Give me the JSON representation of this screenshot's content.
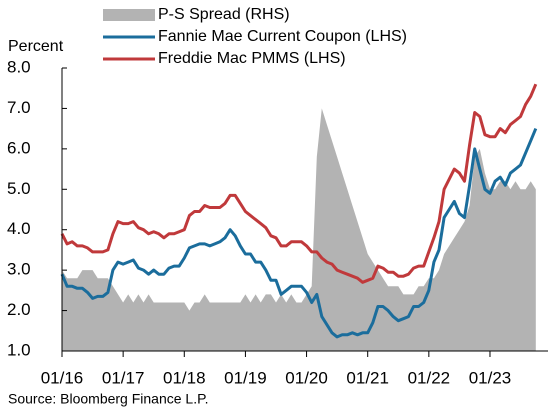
{
  "chart_data": {
    "type": "line",
    "y_label": "Percent",
    "source": "Source: Bloomberg Finance L.P.",
    "x": [
      "01/16",
      "02/16",
      "03/16",
      "04/16",
      "05/16",
      "06/16",
      "07/16",
      "08/16",
      "09/16",
      "10/16",
      "11/16",
      "12/16",
      "01/17",
      "02/17",
      "03/17",
      "04/17",
      "05/17",
      "06/17",
      "07/17",
      "08/17",
      "09/17",
      "10/17",
      "11/17",
      "12/17",
      "01/18",
      "02/18",
      "03/18",
      "04/18",
      "05/18",
      "06/18",
      "07/18",
      "08/18",
      "09/18",
      "10/18",
      "11/18",
      "12/18",
      "01/19",
      "02/19",
      "03/19",
      "04/19",
      "05/19",
      "06/19",
      "07/19",
      "08/19",
      "09/19",
      "10/19",
      "11/19",
      "12/19",
      "01/20",
      "02/20",
      "03/20",
      "04/20",
      "05/20",
      "06/20",
      "07/20",
      "08/20",
      "09/20",
      "10/20",
      "11/20",
      "12/20",
      "01/21",
      "02/21",
      "03/21",
      "04/21",
      "05/21",
      "06/21",
      "07/21",
      "08/21",
      "09/21",
      "10/21",
      "11/21",
      "12/21",
      "01/22",
      "02/22",
      "03/22",
      "04/22",
      "05/22",
      "06/22",
      "07/22",
      "08/22",
      "09/22",
      "10/22",
      "11/22",
      "12/22",
      "01/23",
      "02/23",
      "03/23",
      "04/23",
      "05/23",
      "06/23",
      "07/23",
      "08/23",
      "09/23",
      "10/23"
    ],
    "series": [
      {
        "name": "P-S Spread (RHS)",
        "color": "#b3b3b3",
        "axis": "y2",
        "kind": "area",
        "values": [
          0.5,
          0.45,
          0.45,
          0.45,
          0.5,
          0.5,
          0.5,
          0.45,
          0.45,
          0.45,
          0.4,
          0.35,
          0.3,
          0.35,
          0.3,
          0.35,
          0.3,
          0.35,
          0.3,
          0.3,
          0.3,
          0.3,
          0.3,
          0.3,
          0.3,
          0.25,
          0.3,
          0.3,
          0.35,
          0.3,
          0.3,
          0.3,
          0.3,
          0.3,
          0.3,
          0.3,
          0.35,
          0.3,
          0.35,
          0.3,
          0.35,
          0.35,
          0.3,
          0.35,
          0.3,
          0.35,
          0.3,
          0.3,
          0.35,
          0.4,
          1.2,
          1.5,
          1.4,
          1.3,
          1.2,
          1.1,
          1.0,
          0.9,
          0.8,
          0.7,
          0.6,
          0.55,
          0.5,
          0.45,
          0.4,
          0.4,
          0.4,
          0.35,
          0.35,
          0.35,
          0.4,
          0.4,
          0.45,
          0.45,
          0.5,
          0.6,
          0.65,
          0.7,
          0.75,
          0.8,
          0.9,
          1.2,
          1.25,
          1.1,
          1.0,
          1.0,
          1.05,
          1.05,
          1.0,
          1.05,
          1.0,
          1.0,
          1.05,
          1.0
        ]
      },
      {
        "name": "Fannie Mae Current Coupon (LHS)",
        "color": "#1b6d9c",
        "values": [
          2.9,
          2.6,
          2.6,
          2.55,
          2.55,
          2.45,
          2.3,
          2.35,
          2.35,
          2.45,
          3.0,
          3.2,
          3.15,
          3.2,
          3.25,
          3.05,
          3.0,
          2.9,
          3.0,
          2.9,
          2.9,
          3.05,
          3.1,
          3.1,
          3.3,
          3.55,
          3.6,
          3.65,
          3.65,
          3.6,
          3.65,
          3.7,
          3.8,
          4.0,
          3.85,
          3.6,
          3.4,
          3.4,
          3.2,
          3.2,
          3.0,
          2.75,
          2.75,
          2.4,
          2.5,
          2.6,
          2.6,
          2.6,
          2.45,
          2.2,
          2.4,
          1.85,
          1.65,
          1.45,
          1.35,
          1.4,
          1.4,
          1.45,
          1.4,
          1.45,
          1.45,
          1.7,
          2.1,
          2.1,
          2.0,
          1.85,
          1.75,
          1.8,
          1.85,
          2.1,
          2.1,
          2.2,
          2.5,
          3.2,
          3.5,
          4.3,
          4.5,
          4.7,
          4.4,
          4.3,
          5.1,
          6.0,
          5.5,
          5.0,
          4.9,
          5.2,
          5.3,
          5.1,
          5.4,
          5.5,
          5.6,
          5.9,
          6.2,
          6.5
        ]
      },
      {
        "name": "Freddie Mac PMMS (LHS)",
        "color": "#c0393b",
        "values": [
          3.9,
          3.65,
          3.7,
          3.6,
          3.6,
          3.55,
          3.45,
          3.45,
          3.45,
          3.5,
          3.9,
          4.2,
          4.15,
          4.15,
          4.2,
          4.05,
          4.0,
          3.9,
          3.95,
          3.9,
          3.8,
          3.9,
          3.9,
          3.95,
          4.0,
          4.35,
          4.45,
          4.45,
          4.6,
          4.55,
          4.55,
          4.55,
          4.65,
          4.85,
          4.85,
          4.65,
          4.45,
          4.35,
          4.25,
          4.15,
          4.05,
          3.85,
          3.8,
          3.6,
          3.6,
          3.7,
          3.7,
          3.7,
          3.6,
          3.45,
          3.45,
          3.3,
          3.2,
          3.15,
          3.0,
          2.95,
          2.9,
          2.85,
          2.8,
          2.7,
          2.75,
          2.8,
          3.1,
          3.05,
          2.95,
          2.95,
          2.85,
          2.85,
          2.9,
          3.05,
          3.1,
          3.1,
          3.45,
          3.8,
          4.2,
          5.0,
          5.25,
          5.5,
          5.4,
          5.2,
          6.1,
          6.9,
          6.8,
          6.35,
          6.3,
          6.3,
          6.5,
          6.4,
          6.6,
          6.7,
          6.8,
          7.1,
          7.3,
          7.6
        ]
      }
    ],
    "ylim": [
      1.0,
      8.0
    ],
    "yticks": [
      {
        "value": 1,
        "label": "1.0"
      },
      {
        "value": 2,
        "label": "2.0"
      },
      {
        "value": 3,
        "label": "3.0"
      },
      {
        "value": 4,
        "label": "4.0"
      },
      {
        "value": 5,
        "label": "5.0"
      },
      {
        "value": 6,
        "label": "6.0"
      },
      {
        "value": 7,
        "label": "7.0"
      },
      {
        "value": 8,
        "label": "8.0"
      }
    ],
    "y2lim": [
      0,
      1.75
    ],
    "grid": false
  }
}
